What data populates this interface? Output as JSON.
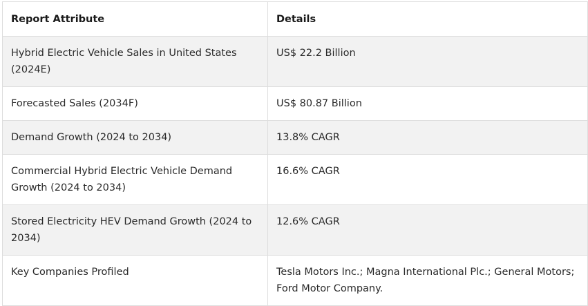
{
  "table": {
    "headers": [
      "Report Attribute",
      "Details"
    ],
    "rows": [
      [
        "Hybrid Electric Vehicle Sales in United States (2024E)",
        "US$ 22.2 Billion"
      ],
      [
        "Forecasted Sales (2034F)",
        "US$ 80.87 Billion"
      ],
      [
        "Demand Growth (2024 to 2034)",
        "13.8% CAGR"
      ],
      [
        "Commercial Hybrid Electric Vehicle Demand Growth (2024 to 2034)",
        "16.6% CAGR"
      ],
      [
        "Stored Electricity HEV Demand Growth (2024 to 2034)",
        "12.6% CAGR"
      ],
      [
        "Key Companies Profiled",
        "Tesla Motors Inc.; Magna International Plc.; General Motors; Ford Motor Company."
      ]
    ]
  }
}
